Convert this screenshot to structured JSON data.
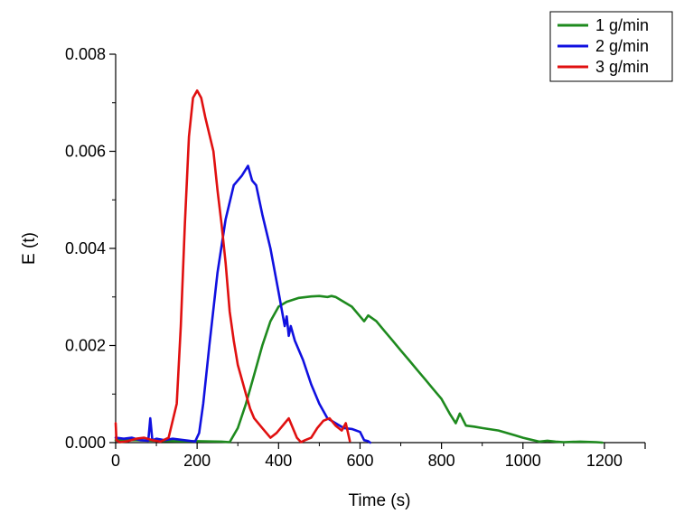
{
  "chart_data": {
    "type": "line",
    "title": "",
    "xlabel": "Time (s)",
    "ylabel": "E (t)",
    "xlim": [
      0,
      1300
    ],
    "ylim": [
      0,
      0.008
    ],
    "x_ticks": [
      0,
      200,
      400,
      600,
      800,
      1000,
      1200
    ],
    "x_tick_labels": [
      "0",
      "200",
      "400",
      "600",
      "800",
      "1000",
      "1200"
    ],
    "y_ticks": [
      0,
      0.002,
      0.004,
      0.006,
      0.008
    ],
    "y_tick_labels": [
      "0.000",
      "0.002",
      "0.004",
      "0.006",
      "0.008"
    ],
    "grid": false,
    "legend_position": "top-right",
    "series": [
      {
        "name": "1 g/min",
        "color": "#1e8a1e",
        "x": [
          0,
          50,
          100,
          150,
          200,
          260,
          280,
          300,
          320,
          340,
          360,
          380,
          400,
          420,
          440,
          460,
          480,
          500,
          520,
          540,
          560,
          580,
          600,
          620,
          640,
          660,
          680,
          700,
          720,
          740,
          760,
          780,
          800,
          820,
          840,
          850,
          860,
          880,
          900,
          940,
          960,
          980,
          1000,
          1020,
          1040,
          1060,
          1080,
          1100,
          1140,
          1180,
          1195
        ],
        "y": [
          5e-05,
          5e-05,
          4e-05,
          3e-05,
          3e-05,
          2e-05,
          1e-05,
          0.0003,
          0.0008,
          0.0014,
          0.002,
          0.0026,
          0.0029,
          0.003,
          0.003,
          0.003,
          0.0029,
          0.0028,
          0.0026,
          0.0025,
          0.0024,
          0.0022,
          0.002,
          0.0018,
          0.0016,
          0.0014,
          0.0012,
          0.001,
          0.0008,
          0.00065,
          0.0005,
          0.0004,
          0.00035,
          0.00055,
          0.00035,
          0.0003,
          0.00028,
          0.00025,
          0.00022,
          0.00018,
          0.00015,
          0.0001,
          6e-05,
          4e-05,
          3e-05,
          2e-05,
          1e-05,
          2e-05,
          1e-05,
          2e-05,
          0.0
        ],
        "x_fixed": [
          0,
          50,
          100,
          150,
          200,
          260,
          280,
          300,
          320,
          340,
          360,
          380,
          400,
          420,
          450,
          480,
          500,
          520,
          530,
          540,
          560,
          580,
          600,
          610,
          620,
          640,
          660,
          680,
          700,
          720,
          740,
          760,
          780,
          800,
          820,
          835,
          845,
          860,
          880,
          900,
          940,
          980,
          1000,
          1020,
          1040,
          1060,
          1080,
          1100,
          1140,
          1180,
          1195
        ],
        "y_fixed": [
          5e-05,
          5e-05,
          4e-05,
          3e-05,
          3e-05,
          2e-05,
          1e-05,
          0.0003,
          0.0008,
          0.0014,
          0.002,
          0.0025,
          0.0028,
          0.0029,
          0.00298,
          0.00301,
          0.00302,
          0.003,
          0.00302,
          0.003,
          0.0029,
          0.0028,
          0.0026,
          0.0025,
          0.00262,
          0.0025,
          0.0023,
          0.0021,
          0.0019,
          0.0017,
          0.0015,
          0.0013,
          0.0011,
          0.0009,
          0.0006,
          0.0004,
          0.0006,
          0.00035,
          0.00033,
          0.0003,
          0.00025,
          0.00015,
          0.0001,
          6e-05,
          2e-05,
          4e-05,
          2e-05,
          1e-05,
          2e-05,
          1e-05,
          0.0
        ]
      },
      {
        "name": "2 g/min",
        "color": "#1010e0",
        "x": [
          0,
          20,
          40,
          60,
          80,
          85,
          90,
          100,
          120,
          140,
          160,
          180,
          195,
          205,
          215,
          230,
          250,
          270,
          290,
          310,
          325,
          335,
          345,
          360,
          380,
          400,
          415,
          420,
          425,
          430,
          440,
          460,
          480,
          500,
          520,
          540,
          560,
          580,
          600,
          610,
          620,
          625
        ],
        "y": [
          0.0001,
          8e-05,
          0.0001,
          5e-05,
          4e-05,
          0.0005,
          5e-05,
          8e-05,
          5e-05,
          8e-05,
          6e-05,
          4e-05,
          2e-05,
          0.0002,
          0.0008,
          0.002,
          0.0035,
          0.0046,
          0.0053,
          0.0055,
          0.0057,
          0.0054,
          0.0053,
          0.0047,
          0.004,
          0.0031,
          0.0024,
          0.0026,
          0.0022,
          0.0024,
          0.0021,
          0.0017,
          0.0012,
          0.0008,
          0.0005,
          0.0004,
          0.0003,
          0.00028,
          0.00022,
          5e-05,
          3e-05,
          0.0
        ]
      },
      {
        "name": "3 g/min",
        "color": "#e01010",
        "x": [
          0,
          2,
          10,
          30,
          50,
          70,
          90,
          110,
          130,
          150,
          160,
          170,
          180,
          190,
          200,
          210,
          220,
          240,
          250,
          260,
          270,
          280,
          290,
          300,
          310,
          320,
          330,
          340,
          360,
          380,
          395,
          405,
          415,
          425,
          435,
          445,
          455,
          465,
          480,
          495,
          510,
          525,
          540,
          555,
          565,
          575
        ],
        "y": [
          0.0004,
          5e-05,
          1e-05,
          3e-05,
          8e-05,
          0.0001,
          5e-05,
          2e-05,
          0.0001,
          0.0008,
          0.0024,
          0.0045,
          0.0063,
          0.0071,
          0.00725,
          0.0071,
          0.0067,
          0.006,
          0.0052,
          0.0045,
          0.0037,
          0.0027,
          0.0021,
          0.0016,
          0.0013,
          0.001,
          0.0007,
          0.0005,
          0.0003,
          0.0001,
          0.0002,
          0.0003,
          0.0004,
          0.0005,
          0.0003,
          0.0001,
          1e-05,
          5e-05,
          0.0001,
          0.0003,
          0.00045,
          0.0005,
          0.00035,
          0.00025,
          0.0004,
          3e-05
        ]
      }
    ]
  }
}
